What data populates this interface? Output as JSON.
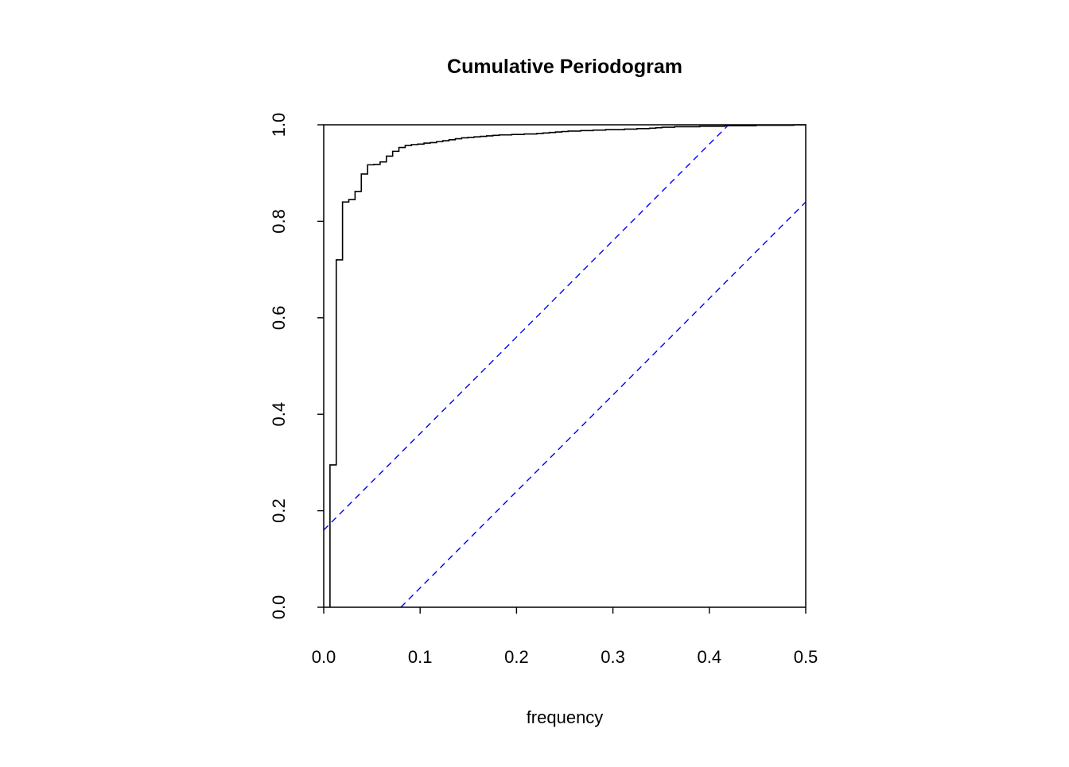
{
  "chart_data": {
    "type": "line",
    "title": "Cumulative Periodogram",
    "xlabel": "frequency",
    "ylabel": "",
    "xlim": [
      0,
      0.5
    ],
    "ylim": [
      0,
      1
    ],
    "x_ticks": [
      "0.0",
      "0.1",
      "0.2",
      "0.3",
      "0.4",
      "0.5"
    ],
    "y_ticks": [
      "0.0",
      "0.2",
      "0.4",
      "0.6",
      "0.8",
      "1.0"
    ],
    "grid": false,
    "series": [
      {
        "name": "cumulative periodogram",
        "style": "step",
        "color": "#000000",
        "freq_step": 0.0065,
        "values": [
          0.295,
          0.72,
          0.84,
          0.845,
          0.862,
          0.898,
          0.917,
          0.918,
          0.923,
          0.935,
          0.945,
          0.953,
          0.957,
          0.959,
          0.96,
          0.962,
          0.963,
          0.965,
          0.967,
          0.969,
          0.971,
          0.973,
          0.974,
          0.975,
          0.976,
          0.977,
          0.978,
          0.979,
          0.979,
          0.98,
          0.98,
          0.981,
          0.981,
          0.982,
          0.983,
          0.984,
          0.985,
          0.986,
          0.987,
          0.987,
          0.988,
          0.988,
          0.989,
          0.989,
          0.99,
          0.99,
          0.99,
          0.991,
          0.991,
          0.992,
          0.992,
          0.993,
          0.994,
          0.995,
          0.995,
          0.996,
          0.996,
          0.996,
          0.996,
          0.997,
          0.997,
          0.997,
          0.997,
          0.998,
          0.998,
          0.998,
          0.998,
          0.998,
          0.999,
          0.999,
          0.999,
          0.999,
          0.999,
          0.999,
          1.0,
          1.0,
          1.0
        ]
      }
    ],
    "confidence_bands": [
      {
        "name": "upper",
        "x": [
          0,
          0.42
        ],
        "y": [
          0.16,
          1.0
        ],
        "color": "#0000ff",
        "style": "dashed"
      },
      {
        "name": "lower",
        "x": [
          0.08,
          0.5
        ],
        "y": [
          0.0,
          0.84
        ],
        "color": "#0000ff",
        "style": "dashed"
      }
    ]
  }
}
